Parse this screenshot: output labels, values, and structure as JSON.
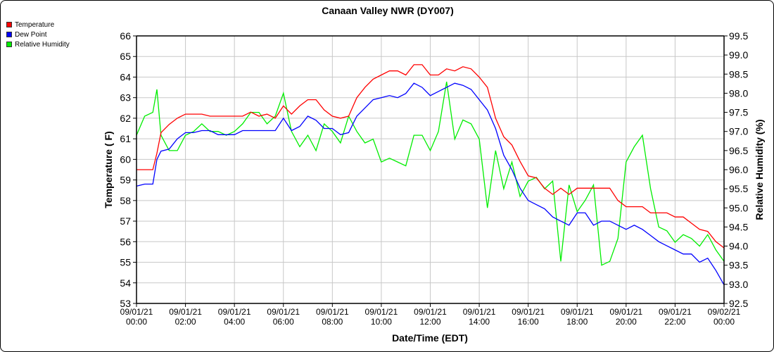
{
  "chart_data": {
    "type": "line",
    "title": "Canaan Valley NWR (DY007)",
    "xlabel": "Date/Time (EDT)",
    "ylabel": "Temperature ( F)",
    "y2label": "Relative Humidity (%)",
    "ylim": [
      53,
      66
    ],
    "y2lim": [
      92.5,
      99.5
    ],
    "xlim_hours": [
      0,
      24
    ],
    "grid": true,
    "legend_position": "top-left",
    "x_tick_labels": [
      [
        "09/01/21",
        "00:00"
      ],
      [
        "09/01/21",
        "02:00"
      ],
      [
        "09/01/21",
        "04:00"
      ],
      [
        "09/01/21",
        "06:00"
      ],
      [
        "09/01/21",
        "08:00"
      ],
      [
        "09/01/21",
        "10:00"
      ],
      [
        "09/01/21",
        "12:00"
      ],
      [
        "09/01/21",
        "14:00"
      ],
      [
        "09/01/21",
        "16:00"
      ],
      [
        "09/01/21",
        "18:00"
      ],
      [
        "09/01/21",
        "20:00"
      ],
      [
        "09/01/21",
        "22:00"
      ],
      [
        "09/02/21",
        "00:00"
      ]
    ],
    "y_ticks": [
      53,
      54,
      55,
      56,
      57,
      58,
      59,
      60,
      61,
      62,
      63,
      64,
      65,
      66
    ],
    "y2_ticks": [
      "92.5",
      "93.0",
      "93.5",
      "94.0",
      "94.5",
      "95.0",
      "95.5",
      "96.0",
      "96.5",
      "97.0",
      "97.5",
      "98.0",
      "98.5",
      "99.0",
      "99.5"
    ],
    "x_hours": [
      0,
      0.333,
      0.667,
      0.833,
      1,
      1.333,
      1.667,
      2,
      2.333,
      2.667,
      3,
      3.333,
      3.667,
      4,
      4.333,
      4.667,
      5,
      5.333,
      5.667,
      6,
      6.333,
      6.667,
      7,
      7.333,
      7.667,
      8,
      8.333,
      8.667,
      9,
      9.333,
      9.667,
      10,
      10.333,
      10.667,
      11,
      11.333,
      11.667,
      12,
      12.333,
      12.667,
      13,
      13.333,
      13.667,
      14,
      14.333,
      14.667,
      15,
      15.333,
      15.667,
      16,
      16.333,
      16.667,
      17,
      17.333,
      17.667,
      18,
      18.333,
      18.667,
      19,
      19.333,
      19.667,
      20,
      20.333,
      20.667,
      21,
      21.333,
      21.667,
      22,
      22.333,
      22.667,
      23,
      23.333,
      23.667,
      24
    ],
    "series": [
      {
        "name": "Temperature",
        "axis": "left",
        "color": "#ff0000",
        "values": [
          59.5,
          59.5,
          59.5,
          60.3,
          61.3,
          61.7,
          62.0,
          62.2,
          62.2,
          62.2,
          62.1,
          62.1,
          62.1,
          62.1,
          62.1,
          62.3,
          62.1,
          62.2,
          62.0,
          62.6,
          62.2,
          62.6,
          62.9,
          62.9,
          62.4,
          62.1,
          62.0,
          62.1,
          63.0,
          63.5,
          63.9,
          64.1,
          64.3,
          64.3,
          64.1,
          64.6,
          64.6,
          64.1,
          64.1,
          64.4,
          64.3,
          64.5,
          64.4,
          64.0,
          63.5,
          62.0,
          61.1,
          60.7,
          59.9,
          59.2,
          59.1,
          58.6,
          58.3,
          58.6,
          58.3,
          58.6,
          58.6,
          58.6,
          58.6,
          58.6,
          58.0,
          57.7,
          57.7,
          57.7,
          57.4,
          57.4,
          57.4,
          57.2,
          57.2,
          56.9,
          56.6,
          56.5,
          56.0,
          55.7
        ]
      },
      {
        "name": "Dew Point",
        "axis": "left",
        "color": "#0000ff",
        "values": [
          58.7,
          58.8,
          58.8,
          60.0,
          60.4,
          60.5,
          61.0,
          61.3,
          61.3,
          61.4,
          61.4,
          61.2,
          61.2,
          61.2,
          61.4,
          61.4,
          61.4,
          61.4,
          61.4,
          62.0,
          61.4,
          61.6,
          62.1,
          61.9,
          61.5,
          61.5,
          61.2,
          61.3,
          62.1,
          62.5,
          62.9,
          63.0,
          63.1,
          63.0,
          63.2,
          63.7,
          63.5,
          63.1,
          63.3,
          63.5,
          63.7,
          63.6,
          63.4,
          62.9,
          62.4,
          61.5,
          60.2,
          59.5,
          58.6,
          58.0,
          57.8,
          57.6,
          57.2,
          57.0,
          56.8,
          57.4,
          57.4,
          56.8,
          57.0,
          57.0,
          56.8,
          56.6,
          56.8,
          56.6,
          56.3,
          56.0,
          55.8,
          55.6,
          55.4,
          55.4,
          55.0,
          55.2,
          54.6,
          53.9
        ]
      },
      {
        "name": "Relative Humidity",
        "axis": "right",
        "color": "#00ee00",
        "values": [
          96.9,
          97.4,
          97.5,
          98.1,
          96.9,
          96.5,
          96.5,
          96.9,
          97.0,
          97.2,
          97.0,
          97.0,
          96.9,
          97.0,
          97.2,
          97.5,
          97.5,
          97.2,
          97.4,
          98.0,
          97.0,
          96.6,
          96.9,
          96.5,
          97.2,
          97.0,
          96.7,
          97.4,
          97.0,
          96.7,
          96.8,
          96.2,
          96.3,
          96.2,
          96.1,
          96.9,
          96.9,
          96.5,
          97.0,
          98.3,
          96.8,
          97.3,
          97.2,
          96.8,
          95.0,
          96.5,
          95.5,
          96.2,
          95.3,
          95.7,
          95.8,
          95.5,
          95.7,
          93.6,
          95.6,
          94.9,
          95.2,
          95.6,
          93.5,
          93.6,
          94.2,
          96.2,
          96.6,
          96.9,
          95.5,
          94.5,
          94.4,
          94.1,
          94.3,
          94.2,
          94.0,
          94.3,
          93.9,
          93.6
        ]
      }
    ]
  }
}
